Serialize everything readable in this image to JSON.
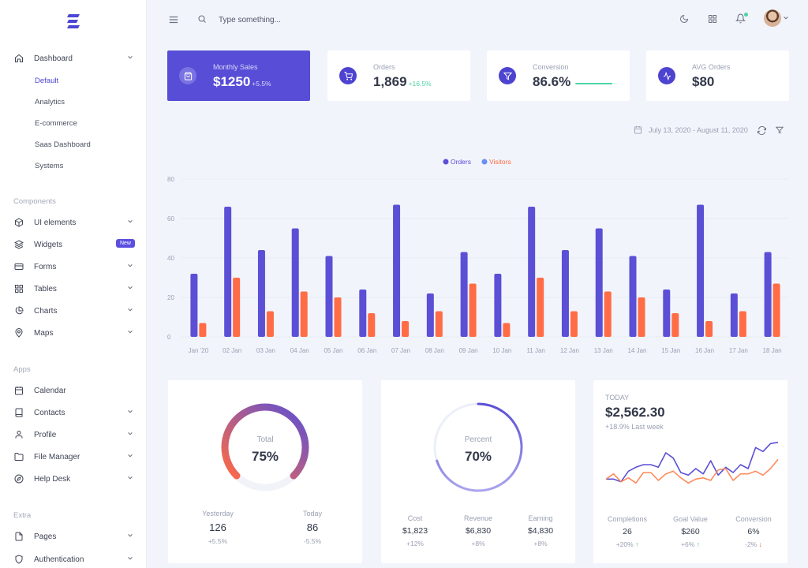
{
  "sidebar": {
    "dashboard_label": "Dashboard",
    "dashboard_sub": [
      "Default",
      "Analytics",
      "E-commerce",
      "Saas Dashboard",
      "Systems"
    ],
    "components_title": "Components",
    "components": [
      {
        "label": "UI elements",
        "icon": "cube-icon",
        "chevron": true
      },
      {
        "label": "Widgets",
        "icon": "layers-icon",
        "badge": "New"
      },
      {
        "label": "Forms",
        "icon": "credit-card-icon",
        "chevron": true
      },
      {
        "label": "Tables",
        "icon": "grid-icon",
        "chevron": true
      },
      {
        "label": "Charts",
        "icon": "pie-chart-icon",
        "chevron": true
      },
      {
        "label": "Maps",
        "icon": "map-pin-icon",
        "chevron": true
      }
    ],
    "apps_title": "Apps",
    "apps": [
      {
        "label": "Calendar",
        "icon": "calendar-icon"
      },
      {
        "label": "Contacts",
        "icon": "book-icon",
        "chevron": true
      },
      {
        "label": "Profile",
        "icon": "user-icon",
        "chevron": true
      },
      {
        "label": "File Manager",
        "icon": "folder-icon",
        "chevron": true
      },
      {
        "label": "Help Desk",
        "icon": "compass-icon",
        "chevron": true
      }
    ],
    "extra_title": "Extra",
    "extra": [
      {
        "label": "Pages",
        "icon": "file-icon",
        "chevron": true
      },
      {
        "label": "Authentication",
        "icon": "shield-icon",
        "chevron": true
      }
    ]
  },
  "topbar": {
    "search_placeholder": "Type something..."
  },
  "stats": [
    {
      "label": "Monthly Sales",
      "value": "$1250",
      "delta": "+5.5%",
      "icon": "shopping-bag-icon"
    },
    {
      "label": "Orders",
      "value": "1,869",
      "delta": "+16.5%",
      "icon": "cart-icon"
    },
    {
      "label": "Conversion",
      "value": "86.6%",
      "delta": "",
      "progress": 0.866,
      "icon": "filter-icon"
    },
    {
      "label": "AVG Orders",
      "value": "$80",
      "delta": "",
      "icon": "activity-icon"
    }
  ],
  "date_range": "July 13, 2020 - August 11, 2020",
  "chart_data": {
    "type": "bar",
    "categories": [
      "Jan '20",
      "02 Jan",
      "03 Jan",
      "04 Jan",
      "05 Jan",
      "06 Jan",
      "07 Jan",
      "08 Jan",
      "09 Jan",
      "10 Jan",
      "11 Jan",
      "12 Jan",
      "13 Jan",
      "14 Jan",
      "15 Jan",
      "16 Jan",
      "17 Jan",
      "18 Jan"
    ],
    "series": [
      {
        "name": "Orders",
        "color": "#5b4fd6",
        "values": [
          32,
          66,
          44,
          55,
          41,
          24,
          67,
          22,
          43,
          32,
          66,
          44,
          55,
          41,
          24,
          67,
          22,
          43
        ]
      },
      {
        "name": "Visitors",
        "color": "#ff6c45",
        "values": [
          7,
          30,
          13,
          23,
          20,
          12,
          8,
          13,
          27,
          7,
          30,
          13,
          23,
          20,
          12,
          8,
          13,
          27
        ]
      }
    ],
    "yticks": [
      0,
      20,
      40,
      60,
      80
    ],
    "ylim": [
      0,
      80
    ],
    "legend_position": "top-center",
    "grid": true
  },
  "gauge1": {
    "label": "Total",
    "value": "75%",
    "percent": 0.75,
    "footer": [
      {
        "label": "Yesterday",
        "value": "126",
        "sub": "+5.5%"
      },
      {
        "label": "Today",
        "value": "86",
        "sub": "-5.5%"
      }
    ]
  },
  "gauge2": {
    "label": "Percent",
    "value": "70%",
    "percent": 0.7,
    "footer": [
      {
        "label": "Cost",
        "value": "$1,823",
        "sub": "+12%"
      },
      {
        "label": "Revenue",
        "value": "$6,830",
        "sub": "+8%"
      },
      {
        "label": "Earning",
        "value": "$4,830",
        "sub": "+8%"
      }
    ]
  },
  "today_card": {
    "title": "TODAY",
    "value": "$2,562.30",
    "sub": "+18.9% Last week",
    "line_series": [
      {
        "name": "series-a",
        "color": "#5b4fd6",
        "values": [
          40,
          40,
          38,
          46,
          49,
          51,
          51,
          49,
          60,
          56,
          45,
          43,
          48,
          44,
          54,
          43,
          49,
          45,
          51,
          48,
          64,
          61,
          67,
          68
        ]
      },
      {
        "name": "series-b",
        "color": "#ff8a5c",
        "values": [
          40,
          44,
          38,
          41,
          37,
          45,
          45,
          39,
          44,
          46,
          41,
          37,
          40,
          41,
          39,
          47,
          48,
          39,
          44,
          44,
          46,
          43,
          48,
          55
        ]
      }
    ],
    "footer": [
      {
        "label": "Completions",
        "value": "26",
        "sub": "+20%",
        "trend": "up"
      },
      {
        "label": "Goal Value",
        "value": "$260",
        "sub": "+6%",
        "trend": "up"
      },
      {
        "label": "Conversion",
        "value": "6%",
        "sub": "-2%",
        "trend": "down"
      }
    ]
  },
  "colors": {
    "accent": "#574dd6",
    "orange": "#ff6c45",
    "green": "#4cd4a3"
  }
}
